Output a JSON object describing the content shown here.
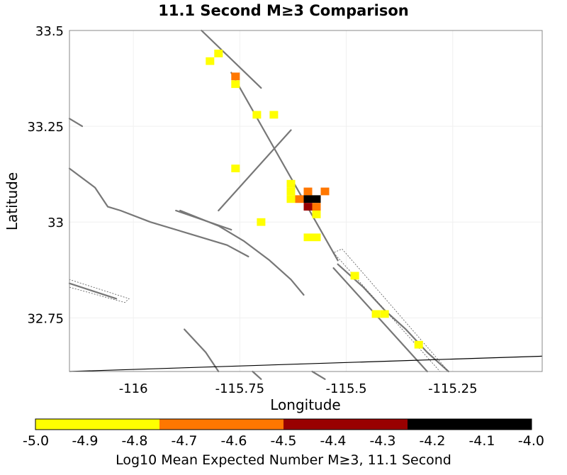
{
  "chart_data": {
    "type": "heatmap",
    "title": "11.1 Second M≥3 Comparison",
    "xlabel": "Longitude",
    "ylabel": "Latitude",
    "xlim": [
      -116.15,
      -115.04
    ],
    "ylim": [
      32.61,
      33.5
    ],
    "x_ticks": [
      -116,
      -115.75,
      -115.5,
      -115.25
    ],
    "x_tick_labels": [
      "-116",
      "-115.75",
      "-115.5",
      "-115.25"
    ],
    "y_ticks": [
      33.5,
      33.25,
      33,
      32.75
    ],
    "y_tick_labels": [
      "33.5",
      "33.25",
      "33",
      "32.75"
    ],
    "grid": true,
    "cell_size_deg": 0.02,
    "cells": [
      {
        "lon": -115.82,
        "lat": 33.42,
        "value": -4.95
      },
      {
        "lon": -115.8,
        "lat": 33.44,
        "value": -4.95
      },
      {
        "lon": -115.76,
        "lat": 33.38,
        "value": -4.65
      },
      {
        "lon": -115.76,
        "lat": 33.36,
        "value": -4.95
      },
      {
        "lon": -115.71,
        "lat": 33.28,
        "value": -4.95
      },
      {
        "lon": -115.67,
        "lat": 33.28,
        "value": -4.95
      },
      {
        "lon": -115.76,
        "lat": 33.14,
        "value": -4.95
      },
      {
        "lon": -115.63,
        "lat": 33.1,
        "value": -4.95
      },
      {
        "lon": -115.63,
        "lat": 33.08,
        "value": -4.95
      },
      {
        "lon": -115.63,
        "lat": 33.06,
        "value": -4.95
      },
      {
        "lon": -115.61,
        "lat": 33.06,
        "value": -4.65
      },
      {
        "lon": -115.59,
        "lat": 33.08,
        "value": -4.65
      },
      {
        "lon": -115.59,
        "lat": 33.06,
        "value": -4.05
      },
      {
        "lon": -115.57,
        "lat": 33.06,
        "value": -4.05
      },
      {
        "lon": -115.59,
        "lat": 33.04,
        "value": -4.35
      },
      {
        "lon": -115.57,
        "lat": 33.04,
        "value": -4.65
      },
      {
        "lon": -115.55,
        "lat": 33.08,
        "value": -4.65
      },
      {
        "lon": -115.57,
        "lat": 33.02,
        "value": -4.95
      },
      {
        "lon": -115.7,
        "lat": 33.0,
        "value": -4.95
      },
      {
        "lon": -115.59,
        "lat": 32.96,
        "value": -4.95
      },
      {
        "lon": -115.57,
        "lat": 32.96,
        "value": -4.95
      },
      {
        "lon": -115.48,
        "lat": 32.86,
        "value": -4.95
      },
      {
        "lon": -115.43,
        "lat": 32.76,
        "value": -4.95
      },
      {
        "lon": -115.41,
        "lat": 32.76,
        "value": -4.95
      },
      {
        "lon": -115.33,
        "lat": 32.68,
        "value": -4.95
      }
    ],
    "faults": [
      [
        [
          -115.84,
          33.5
        ],
        [
          -115.7,
          33.35
        ]
      ],
      [
        [
          -115.77,
          33.39
        ],
        [
          -115.52,
          32.9
        ]
      ],
      [
        [
          -115.63,
          33.24
        ],
        [
          -115.8,
          33.03
        ]
      ],
      [
        [
          -115.77,
          32.98
        ],
        [
          -115.9,
          33.03
        ]
      ],
      [
        [
          -116.15,
          33.27
        ],
        [
          -116.12,
          33.25
        ]
      ],
      [
        [
          -116.15,
          33.14
        ],
        [
          -116.09,
          33.09
        ],
        [
          -116.06,
          33.04
        ],
        [
          -116.03,
          33.03
        ],
        [
          -115.96,
          33.0
        ],
        [
          -115.87,
          32.97
        ],
        [
          -115.78,
          32.94
        ],
        [
          -115.73,
          32.91
        ]
      ],
      [
        [
          -115.89,
          33.03
        ],
        [
          -115.8,
          32.99
        ],
        [
          -115.74,
          32.95
        ],
        [
          -115.68,
          32.9
        ],
        [
          -115.63,
          32.85
        ],
        [
          -115.6,
          32.81
        ]
      ],
      [
        [
          -115.52,
          32.89
        ],
        [
          -115.46,
          32.83
        ],
        [
          -115.41,
          32.77
        ],
        [
          -115.36,
          32.72
        ],
        [
          -115.31,
          32.66
        ],
        [
          -115.26,
          32.61
        ]
      ],
      [
        [
          -115.72,
          32.61
        ],
        [
          -115.7,
          32.59
        ]
      ],
      [
        [
          -115.53,
          32.88
        ],
        [
          -115.31,
          32.61
        ]
      ],
      [
        [
          -115.88,
          32.72
        ],
        [
          -115.83,
          32.66
        ],
        [
          -115.8,
          32.61
        ]
      ],
      [
        [
          -115.58,
          32.61
        ],
        [
          -115.55,
          32.59
        ]
      ],
      [
        [
          -116.15,
          32.84
        ],
        [
          -116.04,
          32.8
        ]
      ]
    ],
    "boundary": [
      [
        -116.15,
        32.61
      ],
      [
        -115.04,
        32.65
      ]
    ],
    "dashed_zones": [
      [
        [
          -115.53,
          32.92
        ],
        [
          -115.28,
          32.61
        ],
        [
          -115.26,
          32.61
        ],
        [
          -115.51,
          32.93
        ]
      ],
      [
        [
          -116.15,
          32.83
        ],
        [
          -116.02,
          32.79
        ],
        [
          -116.01,
          32.8
        ],
        [
          -116.15,
          32.85
        ]
      ]
    ],
    "colorbar": {
      "label": "Log10 Mean Expected Number M≥3, 11.1 Second",
      "range": [
        -5.0,
        -4.0
      ],
      "tick_values": [
        -5.0,
        -4.9,
        -4.8,
        -4.7,
        -4.6,
        -4.5,
        -4.4,
        -4.3,
        -4.2,
        -4.1,
        -4.0
      ],
      "tick_labels": [
        "-5.0",
        "-4.9",
        "-4.8",
        "-4.7",
        "-4.6",
        "-4.5",
        "-4.4",
        "-4.3",
        "-4.2",
        "-4.1",
        "-4.0"
      ],
      "bins": [
        {
          "from": -5.0,
          "to": -4.75,
          "color": "#ffff00"
        },
        {
          "from": -4.75,
          "to": -4.5,
          "color": "#ff7700"
        },
        {
          "from": -4.5,
          "to": -4.25,
          "color": "#990000"
        },
        {
          "from": -4.25,
          "to": -4.0,
          "color": "#000000"
        }
      ]
    }
  }
}
